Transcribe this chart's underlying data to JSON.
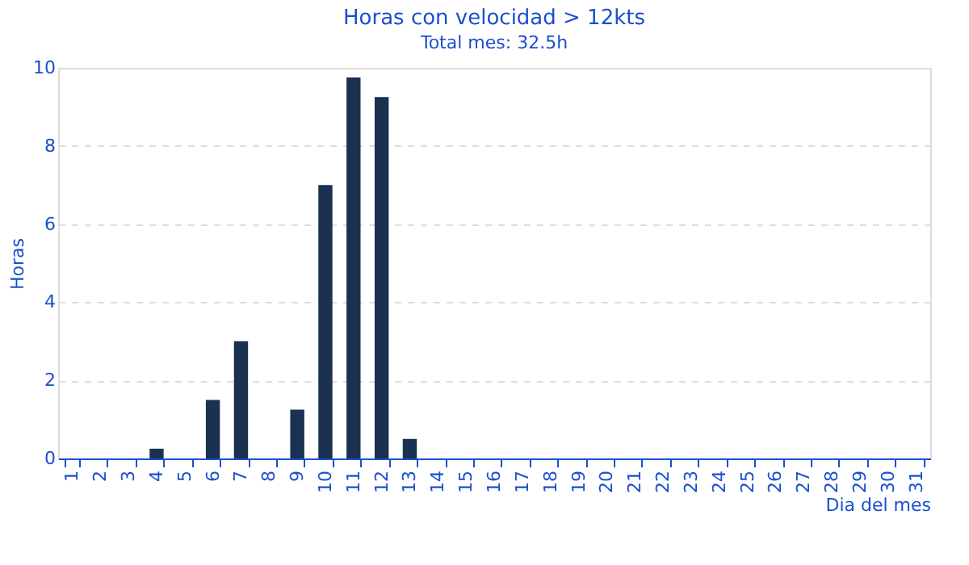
{
  "chart_data": {
    "type": "bar",
    "title": "Horas con velocidad > 12kts",
    "subtitle": "Total mes: 32.5h",
    "xlabel": "Dia del mes",
    "ylabel": "Horas",
    "categories": [
      "1",
      "2",
      "3",
      "4",
      "5",
      "6",
      "7",
      "8",
      "9",
      "10",
      "11",
      "12",
      "13",
      "14",
      "15",
      "16",
      "17",
      "18",
      "19",
      "20",
      "21",
      "22",
      "23",
      "24",
      "25",
      "26",
      "27",
      "28",
      "29",
      "30",
      "31"
    ],
    "values": [
      0,
      0,
      0,
      0.25,
      0,
      1.5,
      3,
      0,
      1.25,
      7,
      9.75,
      9.25,
      0.5,
      0,
      0,
      0,
      0,
      0,
      0,
      0,
      0,
      0,
      0,
      0,
      0,
      0,
      0,
      0,
      0,
      0,
      0
    ],
    "color": "#1a3152",
    "ylim": [
      0,
      10
    ],
    "yticks": [
      0,
      2,
      4,
      6,
      8,
      10
    ],
    "grid": "y"
  }
}
